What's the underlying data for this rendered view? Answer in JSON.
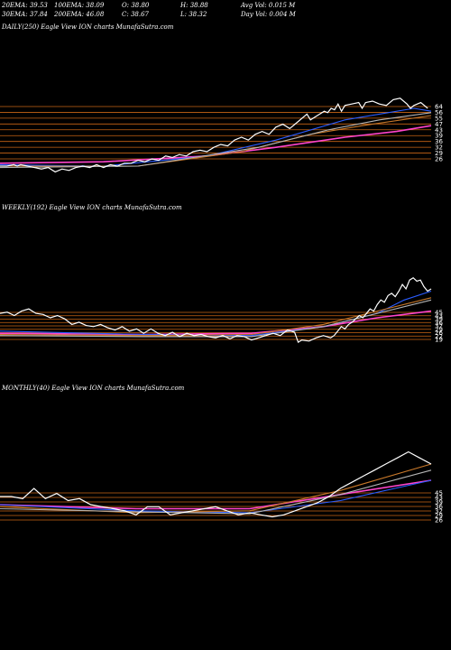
{
  "header": {
    "ema20": "20EMA: 39.53",
    "ema100": "100EMA: 38.09",
    "open": "O: 38.80",
    "high": "H: 38.88",
    "avgvol": "Avg Vol: 0.015  M",
    "ema30": "30EMA: 37.84",
    "ema200": "200EMA: 46.08",
    "close": "C: 38.67",
    "low": "L: 38.32",
    "dayvol": "Day Vol: 0.004  M"
  },
  "colors": {
    "background": "#000000",
    "price": "#ffffff",
    "level_line": "#c86414",
    "ema_pink": "#ff44cc",
    "ema_blue": "#2a5cff",
    "ema_orange": "#c8782a",
    "ema_gray": "#b4b4b4"
  },
  "chart_data": [
    {
      "type": "line",
      "title": "DAILY(250) Eagle  View  ION  charts MunafaSutra.com",
      "ylim": [
        20,
        70
      ],
      "level_labels": [
        "64",
        "56",
        "55",
        "47",
        "43",
        "39",
        "36",
        "32",
        "29",
        "26"
      ],
      "price": [
        [
          0,
          20
        ],
        [
          4,
          20
        ],
        [
          8,
          21
        ],
        [
          10,
          20
        ],
        [
          12,
          21
        ],
        [
          16,
          20
        ],
        [
          20,
          19
        ],
        [
          24,
          18
        ],
        [
          28,
          19
        ],
        [
          32,
          16
        ],
        [
          36,
          18
        ],
        [
          40,
          17
        ],
        [
          44,
          19
        ],
        [
          48,
          20
        ],
        [
          52,
          19
        ],
        [
          56,
          21
        ],
        [
          60,
          19
        ],
        [
          64,
          21
        ],
        [
          68,
          20
        ],
        [
          72,
          22
        ],
        [
          76,
          22
        ],
        [
          80,
          24
        ],
        [
          84,
          23
        ],
        [
          88,
          25
        ],
        [
          92,
          24
        ],
        [
          96,
          27
        ],
        [
          100,
          26
        ],
        [
          104,
          28
        ],
        [
          108,
          27
        ],
        [
          112,
          30
        ],
        [
          116,
          31
        ],
        [
          120,
          30
        ],
        [
          124,
          33
        ],
        [
          128,
          35
        ],
        [
          132,
          34
        ],
        [
          136,
          38
        ],
        [
          140,
          40
        ],
        [
          144,
          38
        ],
        [
          148,
          42
        ],
        [
          152,
          44
        ],
        [
          156,
          42
        ],
        [
          160,
          47
        ],
        [
          164,
          49
        ],
        [
          168,
          46
        ],
        [
          172,
          50
        ],
        [
          176,
          54
        ],
        [
          178,
          56
        ],
        [
          180,
          52
        ],
        [
          184,
          55
        ],
        [
          188,
          58
        ],
        [
          190,
          57
        ],
        [
          192,
          60
        ],
        [
          194,
          59
        ],
        [
          196,
          63
        ],
        [
          198,
          58
        ],
        [
          200,
          62
        ],
        [
          204,
          63
        ],
        [
          208,
          64
        ],
        [
          210,
          60
        ],
        [
          212,
          64
        ],
        [
          216,
          65
        ],
        [
          220,
          63
        ],
        [
          224,
          62
        ],
        [
          228,
          66
        ],
        [
          232,
          67
        ],
        [
          236,
          63
        ],
        [
          238,
          60
        ],
        [
          240,
          62
        ],
        [
          244,
          64
        ],
        [
          248,
          60
        ]
      ],
      "series": [
        {
          "color": "#ff44cc",
          "values": [
            [
              0,
              22
            ],
            [
              60,
              23
            ],
            [
              120,
              27
            ],
            [
              160,
              33
            ],
            [
              200,
              40
            ],
            [
              230,
              44
            ],
            [
              250,
              48
            ]
          ]
        },
        {
          "color": "#2a5cff",
          "values": [
            [
              0,
              21
            ],
            [
              60,
              20
            ],
            [
              120,
              27
            ],
            [
              160,
              38
            ],
            [
              200,
              52
            ],
            [
              220,
              56
            ],
            [
              240,
              60
            ],
            [
              250,
              58
            ]
          ]
        },
        {
          "color": "#c8782a",
          "values": [
            [
              0,
              20
            ],
            [
              80,
              20
            ],
            [
              140,
              30
            ],
            [
              180,
              42
            ],
            [
              210,
              48
            ],
            [
              250,
              55
            ]
          ]
        },
        {
          "color": "#b4b4b4",
          "values": [
            [
              0,
              19
            ],
            [
              80,
              20
            ],
            [
              150,
              33
            ],
            [
              190,
              45
            ],
            [
              220,
              52
            ],
            [
              250,
              57
            ]
          ]
        }
      ]
    },
    {
      "type": "line",
      "title": "WEEKLY(192) Eagle  View  ION  charts MunafaSutra.com",
      "ylim": [
        10,
        75
      ],
      "level_labels": [
        "45",
        "43",
        "39",
        "36",
        "32",
        "29",
        "26",
        "22",
        "19"
      ],
      "price": [
        [
          0,
          40
        ],
        [
          4,
          41
        ],
        [
          8,
          38
        ],
        [
          12,
          42
        ],
        [
          16,
          44
        ],
        [
          20,
          40
        ],
        [
          24,
          39
        ],
        [
          28,
          36
        ],
        [
          32,
          38
        ],
        [
          36,
          35
        ],
        [
          40,
          30
        ],
        [
          44,
          32
        ],
        [
          48,
          29
        ],
        [
          52,
          28
        ],
        [
          56,
          30
        ],
        [
          60,
          27
        ],
        [
          64,
          25
        ],
        [
          68,
          28
        ],
        [
          72,
          24
        ],
        [
          76,
          26
        ],
        [
          80,
          22
        ],
        [
          84,
          26
        ],
        [
          88,
          22
        ],
        [
          92,
          20
        ],
        [
          96,
          23
        ],
        [
          100,
          19
        ],
        [
          104,
          22
        ],
        [
          108,
          20
        ],
        [
          112,
          21
        ],
        [
          116,
          19
        ],
        [
          120,
          18
        ],
        [
          124,
          20
        ],
        [
          128,
          17
        ],
        [
          132,
          20
        ],
        [
          136,
          19
        ],
        [
          140,
          16
        ],
        [
          144,
          18
        ],
        [
          148,
          20
        ],
        [
          152,
          22
        ],
        [
          156,
          20
        ],
        [
          160,
          25
        ],
        [
          164,
          23
        ],
        [
          166,
          14
        ],
        [
          168,
          16
        ],
        [
          172,
          15
        ],
        [
          176,
          18
        ],
        [
          180,
          20
        ],
        [
          184,
          18
        ],
        [
          186,
          20
        ],
        [
          188,
          24
        ],
        [
          190,
          28
        ],
        [
          192,
          26
        ],
        [
          194,
          30
        ],
        [
          196,
          32
        ],
        [
          198,
          35
        ],
        [
          200,
          38
        ],
        [
          202,
          36
        ],
        [
          204,
          40
        ],
        [
          206,
          44
        ],
        [
          208,
          42
        ],
        [
          210,
          48
        ],
        [
          212,
          52
        ],
        [
          214,
          50
        ],
        [
          216,
          56
        ],
        [
          218,
          58
        ],
        [
          220,
          55
        ],
        [
          222,
          60
        ],
        [
          224,
          66
        ],
        [
          226,
          62
        ],
        [
          228,
          70
        ],
        [
          230,
          72
        ],
        [
          232,
          69
        ],
        [
          234,
          70
        ],
        [
          236,
          64
        ],
        [
          238,
          60
        ],
        [
          240,
          62
        ]
      ],
      "series": [
        {
          "color": "#ff44cc",
          "values": [
            [
              0,
              22
            ],
            [
              80,
              21
            ],
            [
              140,
              22
            ],
            [
              180,
              28
            ],
            [
              210,
              36
            ],
            [
              240,
              42
            ]
          ]
        },
        {
          "color": "#2a5cff",
          "values": [
            [
              0,
              24
            ],
            [
              80,
              21
            ],
            [
              140,
              20
            ],
            [
              180,
              28
            ],
            [
              210,
              40
            ],
            [
              225,
              52
            ],
            [
              240,
              60
            ]
          ]
        },
        {
          "color": "#c8782a",
          "values": [
            [
              0,
              21
            ],
            [
              80,
              20
            ],
            [
              140,
              21
            ],
            [
              180,
              30
            ],
            [
              210,
              42
            ],
            [
              240,
              54
            ]
          ]
        },
        {
          "color": "#b4b4b4",
          "values": [
            [
              0,
              20
            ],
            [
              80,
              19
            ],
            [
              140,
              19
            ],
            [
              180,
              28
            ],
            [
              210,
              40
            ],
            [
              240,
              52
            ]
          ]
        }
      ]
    },
    {
      "type": "line",
      "title": "MONTHLY(40) Eagle  View  ION  charts MunafaSutra.com",
      "ylim": [
        0,
        80
      ],
      "level_labels": [
        "45",
        "43",
        "39",
        "36",
        "32",
        "29",
        "26"
      ],
      "price": [
        [
          0,
          32
        ],
        [
          1,
          32
        ],
        [
          2,
          30
        ],
        [
          3,
          40
        ],
        [
          4,
          30
        ],
        [
          5,
          35
        ],
        [
          6,
          28
        ],
        [
          7,
          30
        ],
        [
          8,
          24
        ],
        [
          9,
          22
        ],
        [
          10,
          20
        ],
        [
          11,
          18
        ],
        [
          12,
          14
        ],
        [
          13,
          22
        ],
        [
          14,
          22
        ],
        [
          15,
          14
        ],
        [
          16,
          16
        ],
        [
          17,
          18
        ],
        [
          18,
          20
        ],
        [
          19,
          22
        ],
        [
          20,
          18
        ],
        [
          21,
          14
        ],
        [
          22,
          16
        ],
        [
          23,
          14
        ],
        [
          24,
          12
        ],
        [
          25,
          14
        ],
        [
          26,
          18
        ],
        [
          27,
          22
        ],
        [
          28,
          26
        ],
        [
          29,
          32
        ],
        [
          30,
          40
        ],
        [
          31,
          46
        ],
        [
          32,
          52
        ],
        [
          33,
          58
        ],
        [
          34,
          64
        ],
        [
          35,
          70
        ],
        [
          36,
          76
        ],
        [
          37,
          70
        ],
        [
          38,
          64
        ]
      ],
      "series": [
        {
          "color": "#ff44cc",
          "values": [
            [
              0,
              24
            ],
            [
              12,
              20
            ],
            [
              22,
              20
            ],
            [
              30,
              34
            ],
            [
              38,
              48
            ]
          ]
        },
        {
          "color": "#2a5cff",
          "values": [
            [
              0,
              24
            ],
            [
              12,
              18
            ],
            [
              22,
              16
            ],
            [
              30,
              28
            ],
            [
              38,
              48
            ]
          ]
        },
        {
          "color": "#c8782a",
          "values": [
            [
              0,
              22
            ],
            [
              12,
              16
            ],
            [
              22,
              18
            ],
            [
              30,
              38
            ],
            [
              38,
              64
            ]
          ]
        },
        {
          "color": "#b4b4b4",
          "values": [
            [
              0,
              20
            ],
            [
              12,
              17
            ],
            [
              22,
              15
            ],
            [
              30,
              34
            ],
            [
              38,
              58
            ]
          ]
        }
      ]
    }
  ]
}
